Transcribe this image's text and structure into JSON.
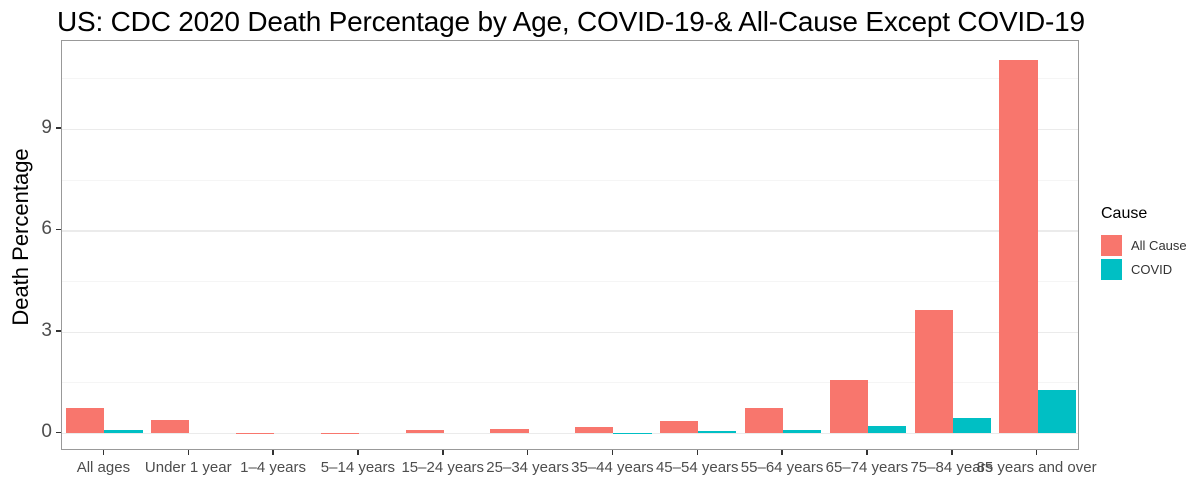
{
  "chart_data": {
    "type": "bar",
    "grouping": "dodged",
    "title": "US: CDC 2020 Death Percentage by Age, COVID-19-& All-Cause Except COVID-19",
    "xlabel": "",
    "ylabel": "Death Percentage",
    "ylim": [
      0,
      11.6
    ],
    "yticks": [
      0,
      3,
      6,
      9
    ],
    "minor_gridlines": [
      1.5,
      4.5,
      7.5,
      10.5
    ],
    "grid": "on",
    "legend_position": "right",
    "legend_title": "Cause",
    "categories": [
      "All ages",
      "Under 1 year",
      "1–4 years",
      "5–14 years",
      "15–24 years",
      "25–34 years",
      "35–44 years",
      "45–54 years",
      "55–64 years",
      "65–74 years",
      "75–84 years",
      "85 years and over"
    ],
    "series": [
      {
        "name": "All Cause",
        "color": "#F8766D",
        "values": [
          0.73,
          0.38,
          0.01,
          0.01,
          0.08,
          0.12,
          0.18,
          0.35,
          0.73,
          1.56,
          3.64,
          11.05
        ]
      },
      {
        "name": "COVID",
        "color": "#00BFC4",
        "values": [
          0.09,
          0.0,
          0.0,
          0.0,
          0.0,
          0.0,
          0.01,
          0.05,
          0.1,
          0.2,
          0.45,
          1.26
        ]
      }
    ]
  },
  "colors": {
    "axis_text": "#4d4d4d",
    "panel_border": "#999999",
    "grid_major": "#ebebeb",
    "grid_minor": "#f5f5f5",
    "tick_mark": "#333333",
    "background": "#ffffff"
  }
}
